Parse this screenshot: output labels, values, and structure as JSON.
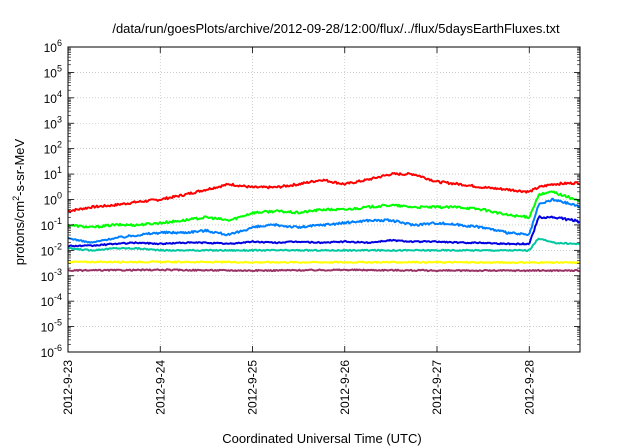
{
  "chart_data": {
    "type": "line",
    "title": "/data/run/goesPlots/archive/2012-09-28/12:00/flux/../flux/5daysEarthFluxes.txt",
    "xlabel": "Coordinated Universal Time (UTC)",
    "ylabel": "protons/cm²-s-sr-MeV",
    "ylabel_parts": {
      "pre": "protons/cm",
      "sup": "2",
      "post": "-s-sr-MeV"
    },
    "yscale": "log",
    "ylim_exp": [
      -6,
      6
    ],
    "y_tick_exponents": [
      -6,
      -5,
      -4,
      -3,
      -2,
      -1,
      0,
      1,
      2,
      3,
      4,
      5,
      6
    ],
    "y_tick_base": "10",
    "x_ticks": [
      "2012-9-23",
      "2012-9-24",
      "2012-9-25",
      "2012-9-26",
      "2012-9-27",
      "2012-9-28"
    ],
    "xlim_days": [
      0,
      5.55
    ],
    "grid": true,
    "legend": "none",
    "series": [
      {
        "color": "#ff0000",
        "x": [
          0,
          0.25,
          0.5,
          0.75,
          1.0,
          1.25,
          1.5,
          1.75,
          2.0,
          2.25,
          2.5,
          2.75,
          3.0,
          3.25,
          3.5,
          3.75,
          4.0,
          4.25,
          4.5,
          4.75,
          5.0,
          5.1,
          5.25,
          5.5,
          5.55
        ],
        "y": [
          0.35,
          0.5,
          0.6,
          0.8,
          1.0,
          1.5,
          2.5,
          4.0,
          3.0,
          3.0,
          4.0,
          6.0,
          4.0,
          6.0,
          10.0,
          10.0,
          5.0,
          4.0,
          3.0,
          2.5,
          2.0,
          3.0,
          4.0,
          4.5,
          4.5
        ]
      },
      {
        "color": "#00ff00",
        "x": [
          0,
          0.25,
          0.5,
          0.75,
          1.0,
          1.25,
          1.5,
          1.75,
          2.0,
          2.25,
          2.5,
          2.75,
          3.0,
          3.25,
          3.5,
          3.75,
          4.0,
          4.25,
          4.5,
          4.75,
          5.0,
          5.1,
          5.25,
          5.5,
          5.55
        ],
        "y": [
          0.1,
          0.08,
          0.1,
          0.1,
          0.12,
          0.15,
          0.2,
          0.15,
          0.3,
          0.35,
          0.3,
          0.4,
          0.4,
          0.5,
          0.6,
          0.5,
          0.5,
          0.5,
          0.4,
          0.25,
          0.2,
          1.5,
          2.0,
          1.0,
          0.8
        ]
      },
      {
        "color": "#0080ff",
        "x": [
          0,
          0.25,
          0.5,
          0.75,
          1.0,
          1.25,
          1.5,
          1.75,
          2.0,
          2.25,
          2.5,
          2.75,
          3.0,
          3.25,
          3.5,
          3.75,
          4.0,
          4.25,
          4.5,
          4.75,
          5.0,
          5.1,
          5.25,
          5.5,
          5.55
        ],
        "y": [
          0.03,
          0.02,
          0.03,
          0.04,
          0.05,
          0.05,
          0.06,
          0.04,
          0.08,
          0.1,
          0.08,
          0.1,
          0.12,
          0.15,
          0.15,
          0.1,
          0.12,
          0.1,
          0.08,
          0.05,
          0.04,
          0.6,
          1.0,
          0.6,
          0.5
        ]
      },
      {
        "color": "#0000e0",
        "x": [
          0,
          0.25,
          0.5,
          0.75,
          1.0,
          1.25,
          1.5,
          1.75,
          2.0,
          2.25,
          2.5,
          2.75,
          3.0,
          3.25,
          3.5,
          3.75,
          4.0,
          4.25,
          4.5,
          4.75,
          5.0,
          5.1,
          5.25,
          5.5,
          5.55
        ],
        "y": [
          0.015,
          0.015,
          0.018,
          0.02,
          0.018,
          0.02,
          0.02,
          0.018,
          0.022,
          0.02,
          0.022,
          0.02,
          0.022,
          0.02,
          0.025,
          0.022,
          0.022,
          0.02,
          0.02,
          0.018,
          0.018,
          0.2,
          0.2,
          0.15,
          0.13
        ]
      },
      {
        "color": "#00c8a0",
        "x": [
          0,
          0.25,
          0.5,
          0.75,
          1.0,
          1.25,
          1.5,
          1.75,
          2.0,
          2.25,
          2.5,
          2.75,
          3.0,
          3.25,
          3.5,
          3.75,
          4.0,
          4.25,
          4.5,
          4.75,
          5.0,
          5.1,
          5.25,
          5.5,
          5.55
        ],
        "y": [
          0.012,
          0.01,
          0.012,
          0.012,
          0.01,
          0.01,
          0.01,
          0.01,
          0.01,
          0.01,
          0.01,
          0.01,
          0.01,
          0.01,
          0.01,
          0.01,
          0.01,
          0.01,
          0.01,
          0.01,
          0.01,
          0.03,
          0.02,
          0.018,
          0.018
        ]
      },
      {
        "color": "#ffff00",
        "x": [
          0,
          1.0,
          2.0,
          3.0,
          4.0,
          5.0,
          5.55
        ],
        "y": [
          0.0035,
          0.0035,
          0.0034,
          0.0034,
          0.0034,
          0.0033,
          0.0033
        ]
      },
      {
        "color": "#993366",
        "x": [
          0,
          1.0,
          2.0,
          3.0,
          4.0,
          5.0,
          5.55
        ],
        "y": [
          0.0016,
          0.0017,
          0.0016,
          0.0017,
          0.0016,
          0.0016,
          0.0016
        ]
      }
    ]
  }
}
